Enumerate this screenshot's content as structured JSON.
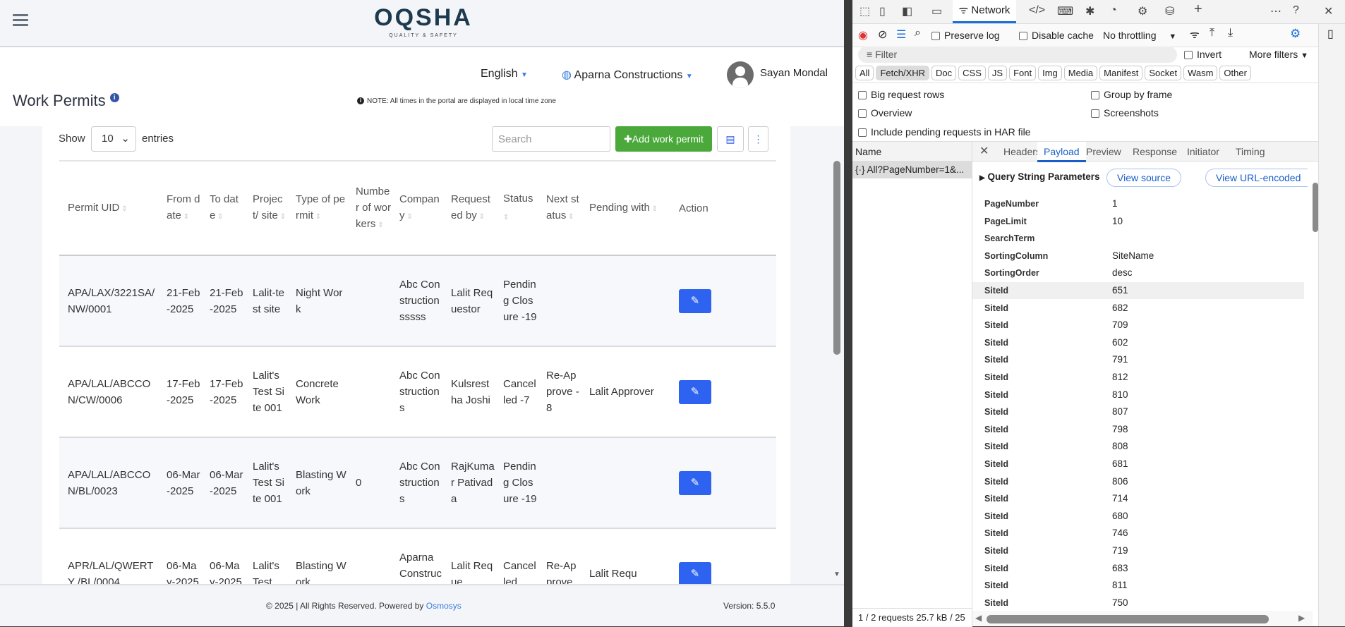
{
  "app": {
    "logo": {
      "name": "OQSHA",
      "tagline": "QUALITY & SAFETY"
    },
    "language": "English",
    "organization": "Aparna Constructions",
    "user_name": "Sayan Mondal",
    "page_title": "Work Permits",
    "note": "NOTE: All times in the portal are displayed in local time zone",
    "controls": {
      "show_label": "Show",
      "entries_value": "10",
      "entries_label": "entries",
      "search_placeholder": "Search",
      "add_label": "Add work permit"
    },
    "table": {
      "headers": [
        "Permit UID",
        "From date",
        "To date",
        "Project/ site",
        "Type of permit",
        "Number of workers",
        "Company",
        "Requested by",
        "Status",
        "Next status",
        "Pending with",
        "Action"
      ],
      "rows": [
        [
          "APA/LAX/3221SA/ NW/0001",
          "21-Feb-2025",
          "21-Feb-2025",
          "Lalit-test site",
          "Night Work",
          "",
          "Abc Construction sssss",
          "Lalit Requestor",
          "Pending Closure -19",
          "",
          ""
        ],
        [
          "APA/LAL/ABCCON/CW/0006",
          "17-Feb-2025",
          "17-Feb-2025",
          "Lalit's Test Site 001",
          "Concrete Work",
          "",
          "Abc Constructions",
          "Kulsrestha Joshi",
          "Cancelled -7",
          "Re-Approve -8",
          "Lalit Approver"
        ],
        [
          "APA/LAL/ABCCON/BL/0023",
          "06-Mar-2025",
          "06-Mar-2025",
          "Lalit's Test Site 001",
          "Blasting Work",
          "0",
          "Abc Constructions",
          "RajKumar Pativada",
          "Pending Closure -19",
          "",
          ""
        ],
        [
          "APR/LAL/QWERTY /BL/0004",
          "06-May-2025",
          "06-May-2025",
          "Lalit's Test",
          "Blasting Work",
          "",
          "Aparna Construction",
          "Lalit Reque",
          "Cancelled",
          "Re-Approve",
          "Lalit Requ"
        ]
      ]
    },
    "footer": {
      "copyright": "© 2025 | All Rights Reserved. Powered by",
      "link": "Osmosys",
      "version": "Version: 5.5.0"
    }
  },
  "devtools": {
    "active_tool": "Network",
    "toolbar": {
      "preserve_log": "Preserve log",
      "disable_cache": "Disable cache",
      "throttling": "No throttling"
    },
    "filter_placeholder": "Filter",
    "invert": "Invert",
    "more_filters": "More filters",
    "type_filters": [
      "All",
      "Fetch/XHR",
      "Doc",
      "CSS",
      "JS",
      "Font",
      "Img",
      "Media",
      "Manifest",
      "Socket",
      "Wasm",
      "Other"
    ],
    "active_type": "Fetch/XHR",
    "options": [
      "Big request rows",
      "Group by frame",
      "Overview",
      "Screenshots",
      "Include pending requests in HAR file"
    ],
    "name_header": "Name",
    "request": "All?PageNumber=1&...",
    "detail_tabs": [
      "Headers",
      "Payload",
      "Preview",
      "Response",
      "Initiator",
      "Timing"
    ],
    "active_detail_tab": "Payload",
    "section_title": "Query String Parameters",
    "view_source": "View source",
    "view_url_encoded": "View URL-encoded",
    "params": [
      {
        "k": "PageNumber",
        "v": "1"
      },
      {
        "k": "PageLimit",
        "v": "10"
      },
      {
        "k": "SearchTerm",
        "v": ""
      },
      {
        "k": "SortingColumn",
        "v": "SiteName"
      },
      {
        "k": "SortingOrder",
        "v": "desc"
      },
      {
        "k": "SiteId",
        "v": "651"
      },
      {
        "k": "SiteId",
        "v": "682"
      },
      {
        "k": "SiteId",
        "v": "709"
      },
      {
        "k": "SiteId",
        "v": "602"
      },
      {
        "k": "SiteId",
        "v": "791"
      },
      {
        "k": "SiteId",
        "v": "812"
      },
      {
        "k": "SiteId",
        "v": "810"
      },
      {
        "k": "SiteId",
        "v": "807"
      },
      {
        "k": "SiteId",
        "v": "798"
      },
      {
        "k": "SiteId",
        "v": "808"
      },
      {
        "k": "SiteId",
        "v": "681"
      },
      {
        "k": "SiteId",
        "v": "806"
      },
      {
        "k": "SiteId",
        "v": "714"
      },
      {
        "k": "SiteId",
        "v": "680"
      },
      {
        "k": "SiteId",
        "v": "746"
      },
      {
        "k": "SiteId",
        "v": "719"
      },
      {
        "k": "SiteId",
        "v": "683"
      },
      {
        "k": "SiteId",
        "v": "811"
      },
      {
        "k": "SiteId",
        "v": "750"
      }
    ],
    "status_bar": "1 / 2 requests  25.7 kB / 25"
  }
}
